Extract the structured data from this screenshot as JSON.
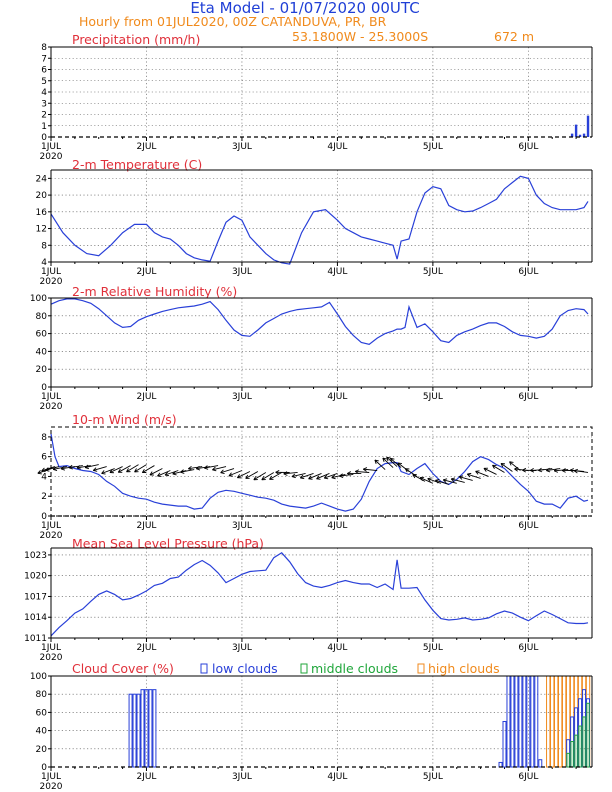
{
  "header": {
    "title": "Eta Model - 01/07/2020 00UTC",
    "subtitle_left": "Hourly from 01JUL2020, 00Z  CATANDUVA, PR, BR",
    "coords": "53.1800W - 25.3000S",
    "elevation": "672  m"
  },
  "x_axis": {
    "labels": [
      "1JUL",
      "2JUL",
      "3JUL",
      "4JUL",
      "5JUL",
      "6JUL"
    ],
    "year": "2020",
    "hours_total": 136
  },
  "legend": {
    "low": "low clouds",
    "middle": "middle clouds",
    "high": "high clouds"
  },
  "colors": {
    "series": "#2940d8",
    "low": "#2940d8",
    "middle": "#1fa63a",
    "high": "#f08a1c",
    "title_red": "#e0303a",
    "title_orange": "#f08a1c",
    "title_blue": "#1f3fd6"
  },
  "chart_data": [
    {
      "id": "precip",
      "type": "bar",
      "title": "Precipitation (mm/h)",
      "ylim": [
        0,
        8
      ],
      "yticks": [
        "0",
        "1",
        "2",
        "3",
        "4",
        "5",
        "6",
        "7",
        "8"
      ],
      "yticks_vals": [
        0,
        1,
        2,
        3,
        4,
        5,
        6,
        7,
        8
      ],
      "x": [
        131,
        132,
        133,
        134,
        135
      ],
      "values": [
        0.3,
        1.1,
        0.2,
        0.3,
        1.9
      ]
    },
    {
      "id": "temp",
      "type": "line",
      "title": "2-m Temperature (C)",
      "ylim": [
        4,
        26
      ],
      "yticks": [
        "4",
        "8",
        "12",
        "16",
        "20",
        "24"
      ],
      "yticks_vals": [
        4,
        8,
        12,
        16,
        20,
        24
      ],
      "x": [
        0,
        3,
        6,
        9,
        12,
        15,
        18,
        21,
        24,
        26,
        28,
        30,
        32,
        34,
        36,
        38,
        40,
        42,
        44,
        46,
        48,
        50,
        52,
        54,
        56,
        58,
        60,
        63,
        66,
        69,
        72,
        74,
        76,
        78,
        80,
        82,
        84,
        86,
        87,
        88,
        90,
        92,
        94,
        96,
        98,
        100,
        102,
        104,
        106,
        108,
        110,
        112,
        114,
        116,
        118,
        120,
        122,
        124,
        126,
        128,
        130,
        132,
        134,
        135
      ],
      "values": [
        15.5,
        11,
        8,
        6,
        5.5,
        8,
        11,
        13,
        13,
        11,
        10,
        9.5,
        8,
        6,
        5,
        4.5,
        4.2,
        9,
        13.5,
        15,
        14,
        10,
        8,
        6,
        4.5,
        3.8,
        3.5,
        11,
        16,
        16.5,
        14,
        12,
        11,
        10,
        9.5,
        9,
        8.5,
        8,
        4.7,
        9,
        9.5,
        16,
        20.5,
        22,
        21.5,
        17.5,
        16.5,
        16,
        16.2,
        17,
        18,
        19,
        21.5,
        23,
        24.5,
        24,
        20,
        18,
        17,
        16.5,
        16.5,
        16.5,
        17,
        18.5
      ]
    },
    {
      "id": "rh",
      "type": "line",
      "title": "2-m Relative Humidity (%)",
      "ylim": [
        0,
        100
      ],
      "yticks": [
        "0",
        "20",
        "40",
        "60",
        "80",
        "100"
      ],
      "yticks_vals": [
        0,
        20,
        40,
        60,
        80,
        100
      ],
      "x": [
        0,
        2,
        4,
        6,
        8,
        10,
        12,
        14,
        16,
        18,
        20,
        22,
        24,
        26,
        28,
        30,
        32,
        34,
        36,
        38,
        40,
        42,
        44,
        46,
        48,
        50,
        52,
        54,
        56,
        58,
        60,
        62,
        64,
        66,
        68,
        70,
        72,
        74,
        76,
        78,
        80,
        82,
        84,
        86,
        87,
        88,
        89,
        90,
        92,
        94,
        96,
        98,
        100,
        102,
        104,
        106,
        108,
        110,
        112,
        114,
        116,
        118,
        120,
        122,
        124,
        126,
        128,
        130,
        132,
        134,
        135
      ],
      "values": [
        93,
        97,
        99,
        99,
        97,
        94,
        88,
        80,
        72,
        67,
        68,
        75,
        79,
        82,
        85,
        87,
        89,
        90,
        91,
        93,
        96,
        87,
        75,
        64,
        58,
        57,
        64,
        72,
        77,
        82,
        85,
        87,
        88,
        89,
        90,
        95,
        82,
        68,
        58,
        50,
        48,
        55,
        60,
        63,
        65,
        65,
        67,
        90,
        67,
        71,
        62,
        52,
        50,
        58,
        62,
        65,
        69,
        72,
        72,
        68,
        62,
        58,
        57,
        55,
        57,
        65,
        80,
        86,
        88,
        87,
        82
      ]
    },
    {
      "id": "wind",
      "type": "line",
      "title": "10-m Wind (m/s)",
      "ylim": [
        0,
        9
      ],
      "yticks": [
        "0",
        "2",
        "4",
        "6",
        "8"
      ],
      "yticks_vals": [
        0,
        2,
        4,
        6,
        8
      ],
      "x": [
        0,
        1,
        2,
        4,
        6,
        8,
        10,
        12,
        14,
        16,
        18,
        20,
        22,
        24,
        26,
        28,
        30,
        32,
        34,
        36,
        38,
        40,
        42,
        44,
        46,
        48,
        50,
        52,
        54,
        56,
        58,
        60,
        62,
        64,
        66,
        68,
        70,
        72,
        74,
        76,
        78,
        80,
        82,
        84,
        86,
        87,
        88,
        90,
        92,
        94,
        96,
        98,
        100,
        102,
        104,
        106,
        108,
        110,
        112,
        114,
        116,
        118,
        120,
        122,
        124,
        126,
        128,
        130,
        132,
        134,
        135
      ],
      "values": [
        8.3,
        6,
        5,
        5.1,
        4.8,
        4.6,
        4.5,
        4.2,
        3.5,
        3,
        2.3,
        2,
        1.8,
        1.7,
        1.4,
        1.2,
        1.1,
        1.0,
        1.0,
        0.7,
        0.8,
        1.8,
        2.4,
        2.6,
        2.5,
        2.3,
        2.1,
        1.9,
        1.8,
        1.6,
        1.2,
        1.0,
        0.9,
        0.8,
        1.0,
        1.3,
        1.0,
        0.7,
        0.5,
        0.7,
        1.7,
        3.5,
        4.8,
        5.3,
        5.4,
        5.4,
        4.5,
        4.2,
        4.8,
        5.3,
        4.3,
        3.5,
        3.2,
        3.7,
        4.5,
        5.5,
        6.0,
        5.7,
        5.2,
        4.8,
        4.0,
        3.2,
        2.5,
        1.5,
        1.2,
        1.2,
        0.8,
        1.8,
        2.0,
        1.5,
        1.6
      ],
      "barb_speed": [
        4.8,
        5.0,
        5.0,
        5.0,
        5.0,
        5.1,
        5.1,
        5.2,
        5.0,
        4.8,
        5.0,
        5.1,
        5.2,
        5.2,
        5.1,
        4.8,
        4.6,
        4.6,
        4.6,
        4.7,
        5.0,
        5.0,
        5.1,
        5.0,
        4.8,
        4.6,
        4.5,
        4.5,
        4.4,
        4.4,
        4.4,
        4.4,
        4.4,
        4.3,
        4.3,
        4.3,
        4.3,
        4.3,
        4.2,
        4.2,
        4.3,
        4.4,
        4.6,
        4.7,
        4.9,
        5.0,
        4.9,
        4.5,
        4.0,
        3.5,
        3.3,
        3.3,
        3.2,
        3.3,
        3.4,
        3.6,
        3.8,
        4.0,
        4.2,
        4.4,
        4.5,
        4.6,
        4.6,
        4.6,
        4.7,
        4.8,
        4.8,
        4.7,
        4.6,
        4.5,
        4.4
      ]
    },
    {
      "id": "mslp",
      "type": "line",
      "title": "Mean Sea Level Pressure (hPa)",
      "ylim": [
        1011,
        1024
      ],
      "yticks": [
        "1011",
        "1014",
        "1017",
        "1020",
        "1023"
      ],
      "yticks_vals": [
        1011,
        1014,
        1017,
        1020,
        1023
      ],
      "x": [
        0,
        2,
        4,
        6,
        8,
        10,
        12,
        14,
        16,
        18,
        20,
        22,
        24,
        26,
        28,
        30,
        32,
        34,
        36,
        38,
        40,
        42,
        44,
        46,
        48,
        50,
        52,
        54,
        56,
        58,
        60,
        62,
        64,
        66,
        68,
        70,
        72,
        74,
        76,
        78,
        80,
        82,
        84,
        86,
        87,
        88,
        90,
        92,
        94,
        96,
        98,
        100,
        102,
        104,
        106,
        108,
        110,
        112,
        114,
        116,
        118,
        120,
        122,
        124,
        126,
        128,
        130,
        132,
        134,
        135
      ],
      "values": [
        1011.3,
        1012.5,
        1013.5,
        1014.6,
        1015.2,
        1016.3,
        1017.3,
        1017.8,
        1017.3,
        1016.5,
        1016.7,
        1017.2,
        1017.8,
        1018.6,
        1018.9,
        1019.6,
        1019.8,
        1020.8,
        1021.6,
        1022.2,
        1021.5,
        1020.4,
        1019.0,
        1019.6,
        1020.2,
        1020.6,
        1020.7,
        1020.8,
        1022.6,
        1023.3,
        1022.0,
        1020.3,
        1019.0,
        1018.5,
        1018.3,
        1018.6,
        1019.0,
        1019.3,
        1019.0,
        1018.8,
        1018.8,
        1018.3,
        1018.8,
        1018.0,
        1022.3,
        1018.2,
        1018.2,
        1018.3,
        1016.5,
        1015.0,
        1013.8,
        1013.6,
        1013.7,
        1013.9,
        1013.6,
        1013.7,
        1013.9,
        1014.5,
        1014.9,
        1014.6,
        1014.0,
        1013.5,
        1014.2,
        1014.9,
        1014.4,
        1013.8,
        1013.2,
        1013.1,
        1013.1,
        1013.2
      ]
    },
    {
      "id": "cloud",
      "type": "bar",
      "title": "Cloud Cover (%)",
      "ylim": [
        0,
        100
      ],
      "yticks": [
        "0",
        "20",
        "40",
        "60",
        "80",
        "100"
      ],
      "yticks_vals": [
        0,
        20,
        40,
        60,
        80,
        100
      ],
      "low_x": [
        20,
        21,
        22,
        23,
        24,
        25,
        26,
        113,
        114,
        115,
        116,
        117,
        118,
        119,
        120,
        121,
        122,
        123
      ],
      "low_values": [
        80,
        80,
        80,
        85,
        85,
        85,
        85,
        5,
        50,
        100,
        100,
        100,
        100,
        100,
        100,
        100,
        100,
        8
      ],
      "middle_x": [
        130,
        131,
        132,
        133,
        134,
        135
      ],
      "middle_values": [
        15,
        28,
        35,
        45,
        55,
        70
      ],
      "high_x": [
        125,
        126,
        127,
        128,
        129,
        130,
        131,
        132,
        133,
        134,
        135
      ],
      "high_values": [
        100,
        100,
        100,
        100,
        100,
        100,
        100,
        100,
        100,
        100,
        100
      ],
      "low_extra_x": [
        130,
        131,
        132,
        133,
        134,
        135
      ],
      "low_extra_values": [
        30,
        55,
        65,
        75,
        85,
        75
      ]
    }
  ]
}
